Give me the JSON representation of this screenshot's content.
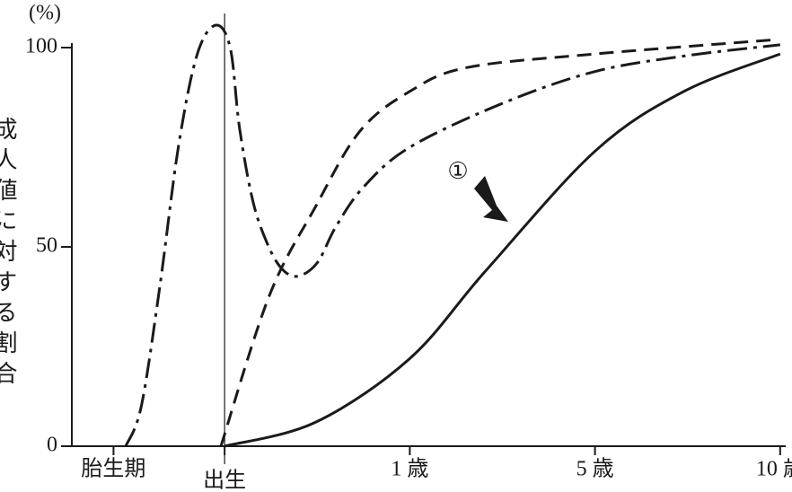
{
  "chart_data": {
    "type": "line",
    "y_unit_label": "(%)",
    "ylabel": "成人値に対する割合",
    "annotation": "①",
    "xlim": [
      -0.825,
      3.03
    ],
    "xticks": [
      {
        "value": -0.6,
        "label": "胎生期"
      },
      {
        "value": 0,
        "label": "出生"
      },
      {
        "value": 1,
        "label": "1 歳"
      },
      {
        "value": 2,
        "label": "5 歳"
      },
      {
        "value": 3,
        "label": "10 歳"
      }
    ],
    "ylim": [
      0,
      100
    ],
    "yticks": [
      0,
      50,
      100
    ],
    "series": [
      {
        "color": "#1a1a1a",
        "dash": "dashdot",
        "x": [
          -0.534,
          -0.45,
          -0.35,
          -0.25,
          -0.15,
          -0.05,
          0.03,
          0.08,
          0.15,
          0.22,
          0.3,
          0.39,
          0.5,
          0.6,
          0.75,
          1,
          1.5,
          2,
          2.5,
          3
        ],
        "values": [
          0,
          10,
          40,
          75,
          98,
          105.6,
          100,
          80,
          62,
          52,
          45,
          42.6,
          46,
          55,
          65,
          75,
          86,
          94,
          98,
          100.7
        ]
      },
      {
        "color": "#1a1a1a",
        "dash": "dashed",
        "x": [
          -0.02,
          0.24,
          0.49,
          0.73,
          1,
          1.31,
          2,
          2.98
        ],
        "values": [
          0,
          37.6,
          60,
          79,
          89,
          95,
          98.4,
          102
        ]
      },
      {
        "color": "#1a1a1a",
        "dash": "solid",
        "x": [
          0,
          0.49,
          1,
          1.41,
          2,
          2.48,
          3
        ],
        "values": [
          0,
          6,
          22,
          44,
          74,
          89,
          98.4
        ]
      }
    ]
  }
}
